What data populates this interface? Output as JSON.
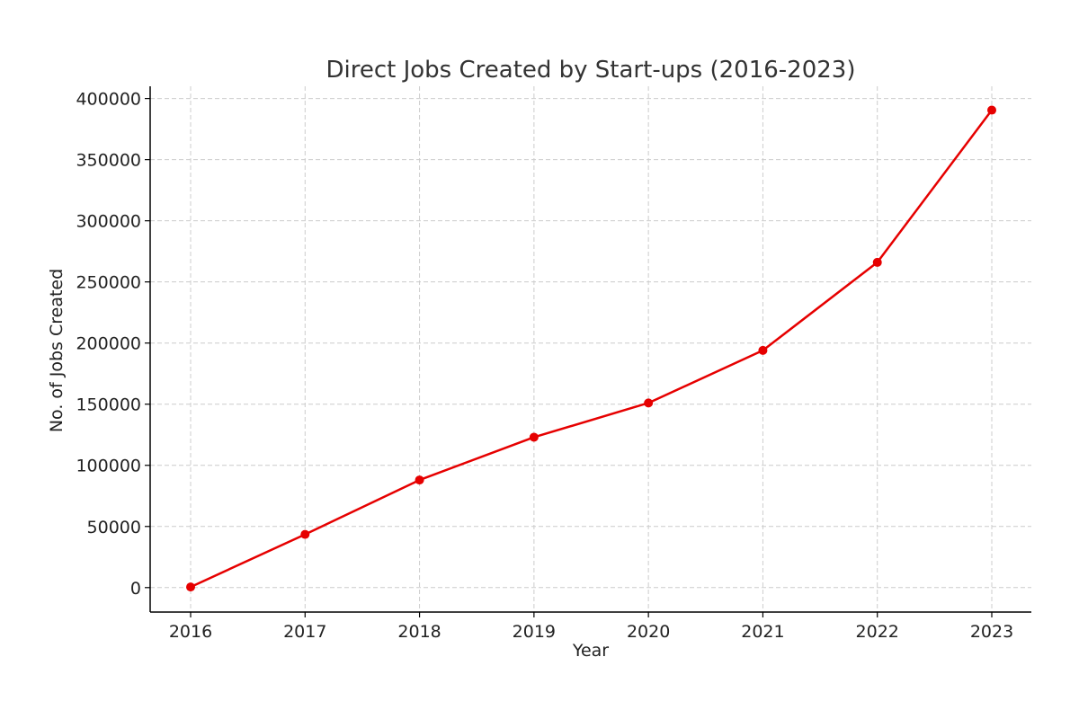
{
  "chart_data": {
    "type": "line",
    "title": "Direct Jobs Created by Start-ups (2016-2023)",
    "xlabel": "Year",
    "ylabel": "No. of Jobs Created",
    "x": [
      "2016",
      "2017",
      "2018",
      "2019",
      "2020",
      "2021",
      "2022",
      "2023"
    ],
    "series": [
      {
        "values": [
          500,
          43500,
          88000,
          123000,
          151000,
          194000,
          266000,
          390500
        ],
        "color": "#e60000",
        "marker": "circle"
      }
    ],
    "ylim": [
      -20000,
      410000
    ],
    "yticks": [
      0,
      50000,
      100000,
      150000,
      200000,
      250000,
      300000,
      350000,
      400000
    ],
    "ytick_labels": [
      "0",
      "50000",
      "100000",
      "150000",
      "200000",
      "250000",
      "300000",
      "350000",
      "400000"
    ],
    "grid": true,
    "grid_style": "dashed"
  }
}
